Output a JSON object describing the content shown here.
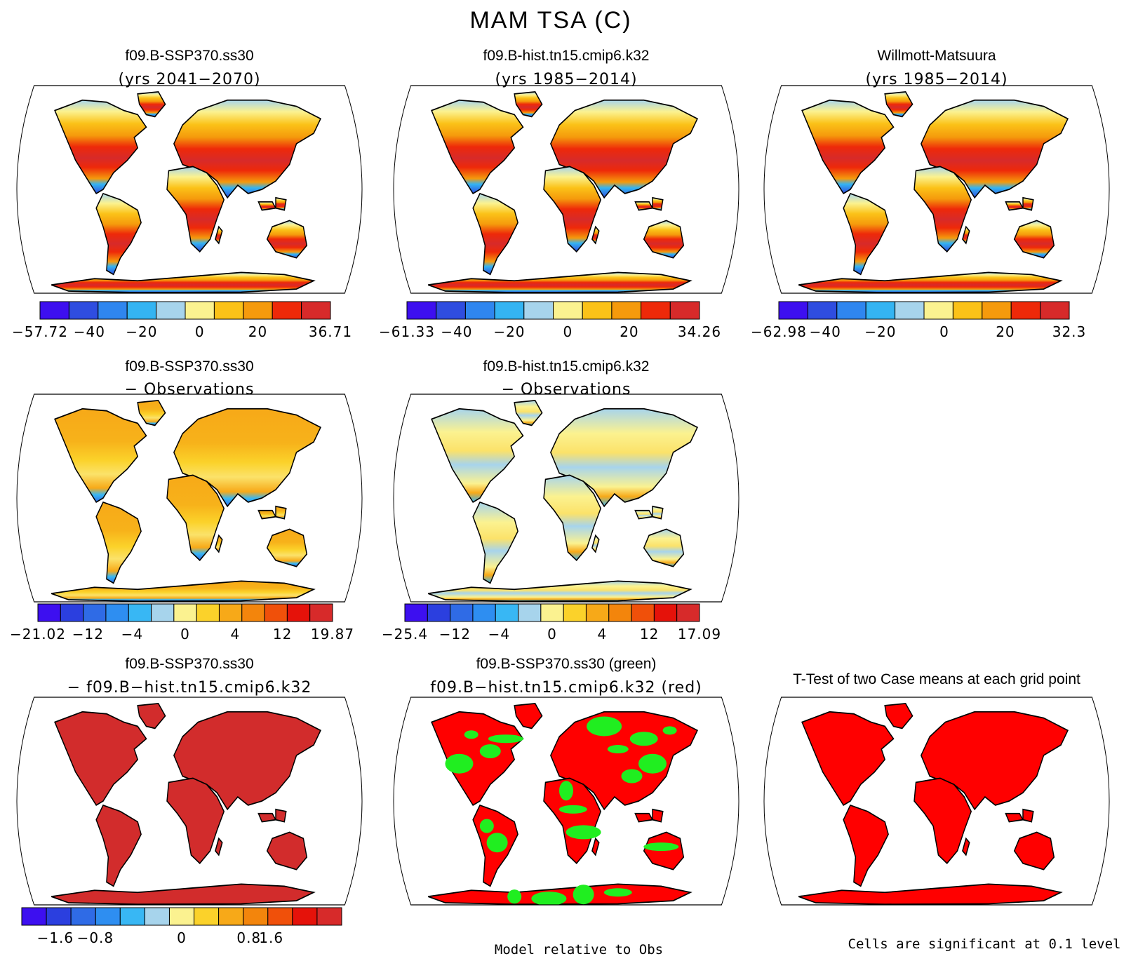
{
  "figure": {
    "title": "MAM TSA (C)",
    "note_model_rel_obs": "Model relative to Obs",
    "note_significance": "Cells are significant at 0.1 level"
  },
  "palettes": {
    "full": [
      "#3d0ff0",
      "#2f4de0",
      "#2f86ef",
      "#34b4f2",
      "#a7d4ec",
      "#fbf290",
      "#fbc218",
      "#f59a0c",
      "#ee2909",
      "#d72a2a"
    ],
    "diff": [
      "#3d0ff0",
      "#2b3fdf",
      "#2f6be6",
      "#2e8ef1",
      "#38b7f4",
      "#a7d4ec",
      "#fbf290",
      "#fbd22a",
      "#f7a918",
      "#f3850c",
      "#f0500a",
      "#e5120a",
      "#d72a2a"
    ],
    "diff12": [
      "#3d0ff0",
      "#2b3fdf",
      "#2f6be6",
      "#2e8ef1",
      "#38b7f4",
      "#a7d4ec",
      "#fbf290",
      "#fbd22a",
      "#f7a918",
      "#f3850c",
      "#f0500a",
      "#e5120a",
      "#d72a2a"
    ],
    "sig_red": "#ff0000",
    "sig_green": "#20ee20",
    "panel_dark_red": "#d22c2c"
  },
  "panels": [
    {
      "title1": "f09.B-SSP370.ss30",
      "title2": "(yrs 2041−2070)",
      "fill": "climate",
      "ticks": [
        "−57.72",
        "−40",
        "−20",
        "0",
        "20",
        "36.71"
      ],
      "palette": "full"
    },
    {
      "title1": "f09.B-hist.tn15.cmip6.k32",
      "title2": "(yrs 1985−2014)",
      "fill": "climate",
      "ticks": [
        "−61.33",
        "−40",
        "−20",
        "0",
        "20",
        "34.26"
      ],
      "palette": "full"
    },
    {
      "title1": "Willmott-Matsuura",
      "title2": "(yrs 1985−2014)",
      "fill": "climate",
      "ticks": [
        "−62.98",
        "−40",
        "−20",
        "0",
        "20",
        "32.3"
      ],
      "palette": "full"
    },
    {
      "title1": "f09.B-SSP370.ss30",
      "title2": "− Observations",
      "fill": "bias_warm",
      "ticks": [
        "−21.02",
        "−12",
        "−4",
        "0",
        "4",
        "12",
        "19.87"
      ],
      "palette": "diff12"
    },
    {
      "title1": "f09.B-hist.tn15.cmip6.k32",
      "title2": "− Observations",
      "fill": "bias_cool",
      "ticks": [
        "−25.4",
        "−12",
        "−4",
        "0",
        "4",
        "12",
        "17.09"
      ],
      "palette": "diff12"
    },
    {
      "title1": "f09.B-SSP370.ss30",
      "title2": "− f09.B−hist.tn15.cmip6.k32",
      "fill": "solid_dark",
      "ticks": [
        "−1.6",
        "−0.8",
        "0",
        "0.8",
        "1.6"
      ],
      "palette": "diff"
    },
    {
      "title1": "f09.B-SSP370.ss30 (green)",
      "title2": "f09.B−hist.tn15.cmip6.k32 (red)",
      "fill": "redgreen",
      "ticks": [],
      "palette": null
    },
    {
      "title1": "T-Test of two Case means at each grid point",
      "title2": "",
      "fill": "solid_red",
      "ticks": [],
      "palette": null
    }
  ]
}
